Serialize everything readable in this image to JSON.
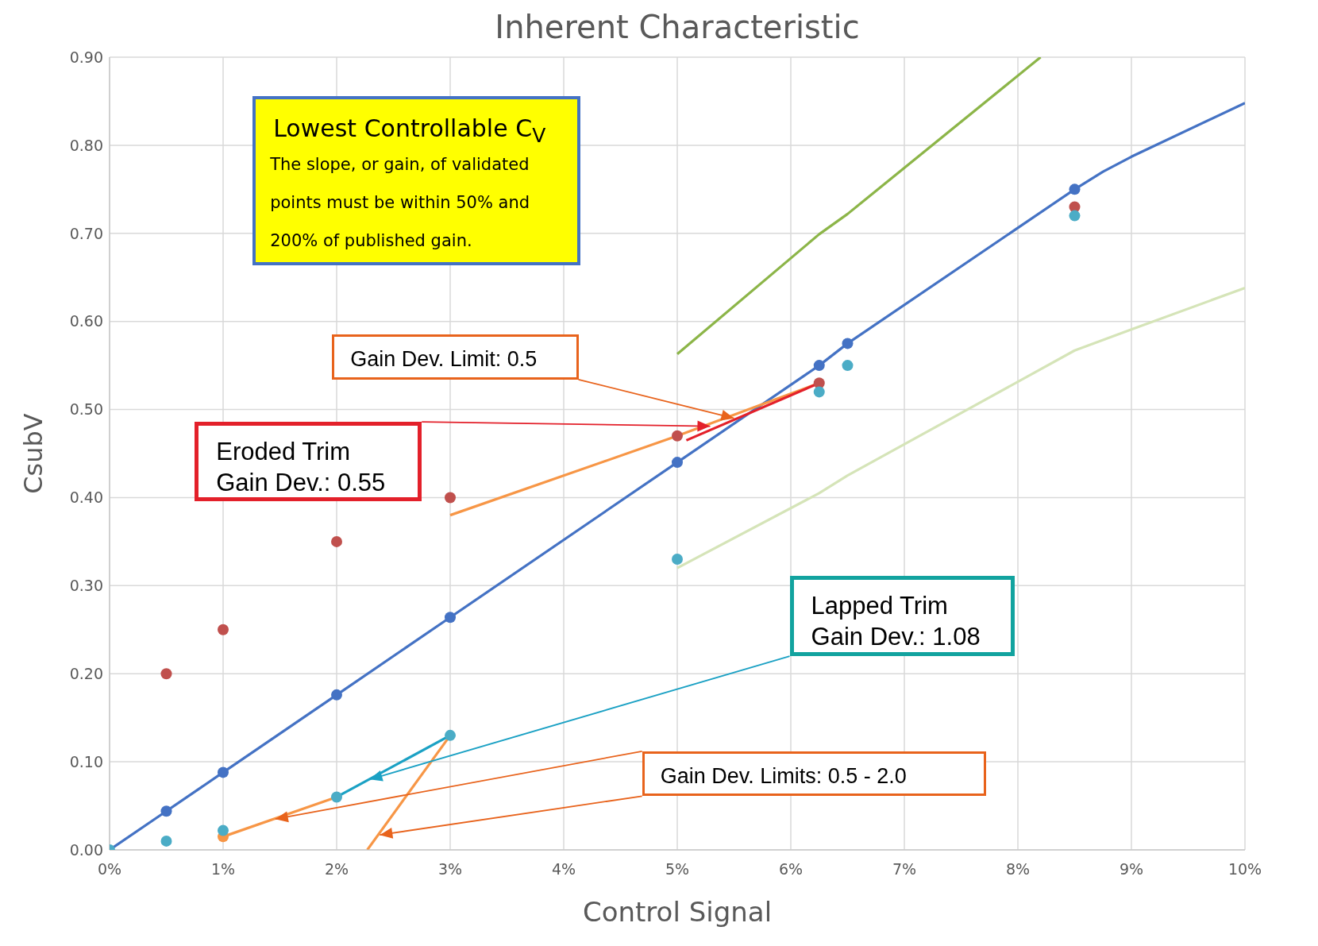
{
  "chart_data": {
    "type": "line",
    "title": "Inherent Characteristic",
    "xlabel": "Control Signal",
    "ylabel": "CsubV",
    "xlim": [
      0,
      10
    ],
    "xticks": [
      {
        "value": 0,
        "label": "0%"
      },
      {
        "value": 1,
        "label": "1%"
      },
      {
        "value": 2,
        "label": "2%"
      },
      {
        "value": 3,
        "label": "3%"
      },
      {
        "value": 4,
        "label": "4%"
      },
      {
        "value": 5,
        "label": "5%"
      },
      {
        "value": 6,
        "label": "6%"
      },
      {
        "value": 7,
        "label": "7%"
      },
      {
        "value": 8,
        "label": "8%"
      },
      {
        "value": 9,
        "label": "9%"
      },
      {
        "value": 10,
        "label": "10%"
      }
    ],
    "ylim": [
      0,
      0.9
    ],
    "yticks": [
      {
        "value": 0,
        "label": "0.00"
      },
      {
        "value": 0.1,
        "label": "0.10"
      },
      {
        "value": 0.2,
        "label": "0.20"
      },
      {
        "value": 0.3,
        "label": "0.30"
      },
      {
        "value": 0.4,
        "label": "0.40"
      },
      {
        "value": 0.5,
        "label": "0.50"
      },
      {
        "value": 0.6,
        "label": "0.60"
      },
      {
        "value": 0.7,
        "label": "0.70"
      },
      {
        "value": 0.8,
        "label": "0.80"
      },
      {
        "value": 0.9,
        "label": "0.90"
      }
    ],
    "grid": true,
    "series": [
      {
        "marker": "none",
        "color": "#4472c4",
        "x": [
          0,
          0.5,
          1,
          2,
          3,
          5,
          6.25,
          6.5,
          8.5,
          8.75,
          9,
          10
        ],
        "values": [
          0,
          0.044,
          0.088,
          0.176,
          0.264,
          0.44,
          0.55,
          0.575,
          0.75,
          0.77,
          0.787,
          0.848
        ]
      },
      {
        "type": "scatter",
        "marker": "circle",
        "color": "#4472c4",
        "x": [
          0.5,
          1,
          2,
          3,
          5,
          6.25,
          6.5,
          8.5
        ],
        "values": [
          0.044,
          0.088,
          0.176,
          0.264,
          0.44,
          0.55,
          0.575,
          0.75
        ]
      },
      {
        "marker": "none",
        "color": "#8cb548",
        "x": [
          5,
          6.25,
          6.5,
          8.2
        ],
        "values": [
          0.563,
          0.699,
          0.722,
          0.9
        ]
      },
      {
        "marker": "none",
        "color": "#d5e4b8",
        "x": [
          5,
          6.25,
          6.5,
          8.5,
          9,
          10
        ],
        "values": [
          0.32,
          0.405,
          0.425,
          0.567,
          0.591,
          0.638
        ]
      },
      {
        "marker": "none",
        "color": "#f79646",
        "x": [
          1,
          2
        ],
        "values": [
          0.015,
          0.06
        ]
      },
      {
        "marker": "none",
        "color": "#f79646",
        "x": [
          2.27,
          3
        ],
        "values": [
          0,
          0.13
        ]
      },
      {
        "marker": "none",
        "color": "#f79646",
        "x": [
          3,
          5,
          6.25
        ],
        "values": [
          0.38,
          0.47,
          0.53
        ]
      },
      {
        "type": "scatter",
        "marker": "circle",
        "color": "#f79646",
        "x": [
          1
        ],
        "values": [
          0.015
        ]
      },
      {
        "marker": "none",
        "color": "#e3202a",
        "x": [
          5.08,
          6.25
        ],
        "values": [
          0.465,
          0.53
        ]
      },
      {
        "marker": "none",
        "color": "#1ba1c4",
        "x": [
          2,
          3
        ],
        "values": [
          0.06,
          0.13
        ]
      },
      {
        "type": "scatter",
        "marker": "circle",
        "color": "#c0504d",
        "x": [
          0.5,
          1,
          2,
          3,
          5,
          6.25,
          8.5
        ],
        "values": [
          0.2,
          0.25,
          0.35,
          0.4,
          0.47,
          0.53,
          0.73
        ]
      },
      {
        "type": "scatter",
        "marker": "circle",
        "color": "#4bacc6",
        "x": [
          0,
          0.5,
          1,
          2,
          3,
          5,
          6.25,
          6.5,
          8.5
        ],
        "values": [
          0,
          0.01,
          0.022,
          0.06,
          0.13,
          0.33,
          0.52,
          0.55,
          0.72
        ]
      }
    ],
    "annotations": [
      "Lowest Controllable C$_{V}$",
      "The slope, or gain, of validated points must be within 50% and 200% of published gain.",
      "Gain Dev. Limit: 0.5",
      "Eroded Trim\nGain Dev.: 0.55",
      {
        "text": "Lapped Trim\nGain Dev.: 1.08",
        "x": 2.29,
        "y": 0.08
      },
      {
        "text": "Gain Dev. Limits: 0.5 - 2.0",
        "x": 1.46,
        "y": 0.035
      }
    ]
  }
}
